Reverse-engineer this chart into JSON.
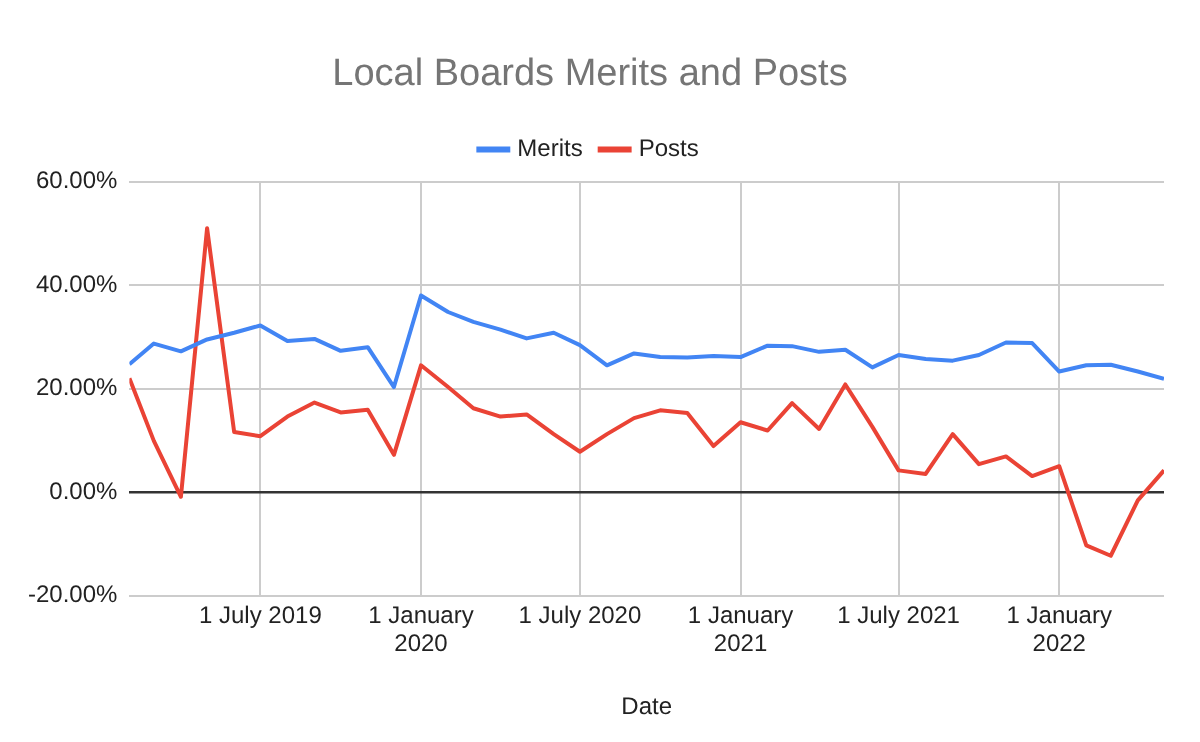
{
  "chart_data": {
    "type": "line",
    "title": "Local Boards Merits and Posts",
    "xlabel": "Date",
    "x": [
      "2019-02",
      "2019-03",
      "2019-04",
      "2019-05",
      "2019-06",
      "2019-07",
      "2019-08",
      "2019-09",
      "2019-10",
      "2019-11",
      "2019-12",
      "2020-01",
      "2020-02",
      "2020-03",
      "2020-04",
      "2020-05",
      "2020-06",
      "2020-07",
      "2020-08",
      "2020-09",
      "2020-10",
      "2020-11",
      "2020-12",
      "2021-01",
      "2021-02",
      "2021-03",
      "2021-04",
      "2021-05",
      "2021-06",
      "2021-07",
      "2021-08",
      "2021-09",
      "2021-10",
      "2021-11",
      "2021-12",
      "2022-01",
      "2022-02",
      "2022-03",
      "2022-04",
      "2022-05"
    ],
    "series": [
      {
        "name": "Merits",
        "color": "#4285f4",
        "values": [
          24.7,
          28.7,
          27.2,
          29.5,
          30.8,
          32.2,
          29.2,
          29.6,
          27.3,
          28.0,
          20.3,
          38.0,
          34.8,
          32.9,
          31.4,
          29.7,
          30.8,
          28.4,
          24.5,
          26.8,
          26.1,
          26.0,
          26.3,
          26.1,
          28.3,
          28.2,
          27.1,
          27.5,
          24.1,
          26.5,
          25.7,
          25.4,
          26.5,
          28.9,
          28.8,
          23.3,
          24.5,
          24.6,
          23.3,
          21.9
        ]
      },
      {
        "name": "Posts",
        "color": "#ea4335",
        "values": [
          22.0,
          9.9,
          -0.9,
          51,
          11.6,
          10.8,
          14.6,
          17.3,
          15.4,
          15.9,
          7.2,
          24.5,
          20.3,
          16.2,
          14.6,
          15.0,
          11.2,
          7.8,
          11.2,
          14.3,
          15.8,
          15.3,
          8.9,
          13.5,
          11.9,
          17.2,
          12.2,
          20.8,
          12.6,
          4.2,
          3.5,
          11.2,
          5.4,
          6.9,
          3.1,
          5.0,
          -10.3,
          -12.3,
          -1.6,
          4.2
        ]
      }
    ],
    "xlim": [
      "2019-02",
      "2022-05"
    ],
    "xticks": [
      {
        "value": "2019-07-01",
        "label": "1 July 2019"
      },
      {
        "value": "2020-01-01",
        "label": "1 January 2020"
      },
      {
        "value": "2020-07-01",
        "label": "1 July 2020"
      },
      {
        "value": "2021-01-01",
        "label": "1 January 2021"
      },
      {
        "value": "2021-07-01",
        "label": "1 July 2021"
      },
      {
        "value": "2022-01-01",
        "label": "1 January 2022"
      }
    ],
    "ylim": [
      -20,
      60
    ],
    "yticks": [
      {
        "value": -20,
        "label": "-20.00%"
      },
      {
        "value": 0,
        "label": "0.00%"
      },
      {
        "value": 20,
        "label": "20.00%"
      },
      {
        "value": 40,
        "label": "40.00%"
      },
      {
        "value": 60,
        "label": "60.00%"
      }
    ],
    "grid": true,
    "legend": "top",
    "marker": "none",
    "line_style": "solid"
  }
}
